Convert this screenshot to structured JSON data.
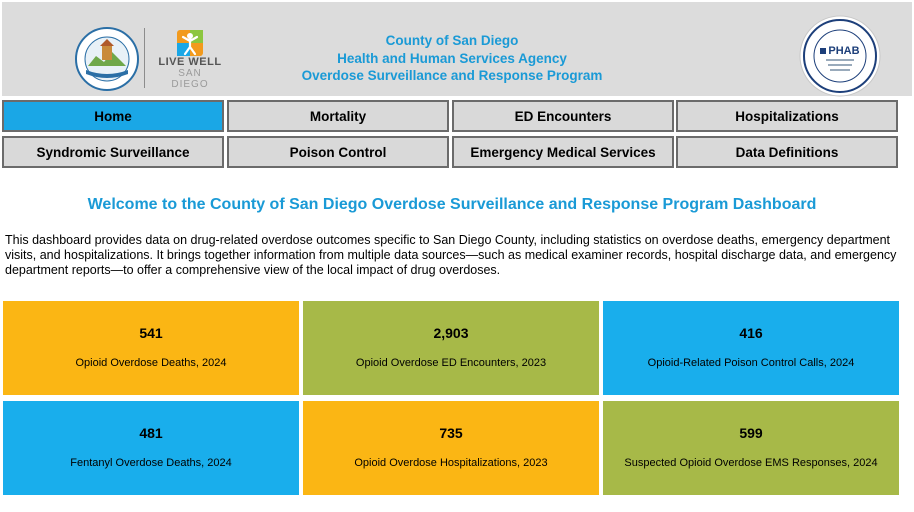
{
  "header": {
    "title_line1": "County of San Diego",
    "title_line2": "Health and Human Services Agency",
    "title_line3": "Overdose Surveillance and Response Program",
    "county_seal_text": "COUNTY OF SAN DIEGO",
    "livewell_line1": "LIVE WELL",
    "livewell_line2": "SAN DIEGO",
    "phab_text": "PHAB"
  },
  "nav": {
    "items": [
      {
        "label": "Home",
        "active": true
      },
      {
        "label": "Mortality"
      },
      {
        "label": "ED Encounters"
      },
      {
        "label": "Hospitalizations"
      },
      {
        "label": "Syndromic Surveillance"
      },
      {
        "label": "Poison Control"
      },
      {
        "label": "Emergency Medical Services"
      },
      {
        "label": "Data Definitions"
      }
    ]
  },
  "main": {
    "welcome_title": "Welcome to the County of San Diego Overdose Surveillance and Response Program Dashboard",
    "intro": "This dashboard provides data on drug-related overdose outcomes specific to San Diego County, including statistics on overdose deaths, emergency department visits, and hospitalizations. It brings together information from multiple data sources—such as medical examiner records, hospital discharge data, and emergency department reports—to offer a comprehensive view of the local impact of drug overdoses."
  },
  "tiles": [
    {
      "value": "541",
      "label": "Opioid Overdose Deaths, 2024",
      "color": "#fbb614"
    },
    {
      "value": "2,903",
      "label": "Opioid Overdose ED Encounters, 2023",
      "color": "#a7b948"
    },
    {
      "value": "416",
      "label": "Opioid-Related Poison Control Calls, 2024",
      "color": "#19aeec"
    },
    {
      "value": "481",
      "label": "Fentanyl Overdose Deaths, 2024",
      "color": "#19aeec"
    },
    {
      "value": "735",
      "label": "Opioid Overdose Hospitalizations, 2023",
      "color": "#fbb614"
    },
    {
      "value": "599",
      "label": "Suspected Opioid Overdose EMS Responses, 2024",
      "color": "#a7b948"
    }
  ],
  "colors": {
    "accent_blue": "#1a9ad6",
    "active_nav": "#1aa7e6",
    "nav_bg": "#d9d9d9",
    "header_bg": "#dcdcdc"
  }
}
